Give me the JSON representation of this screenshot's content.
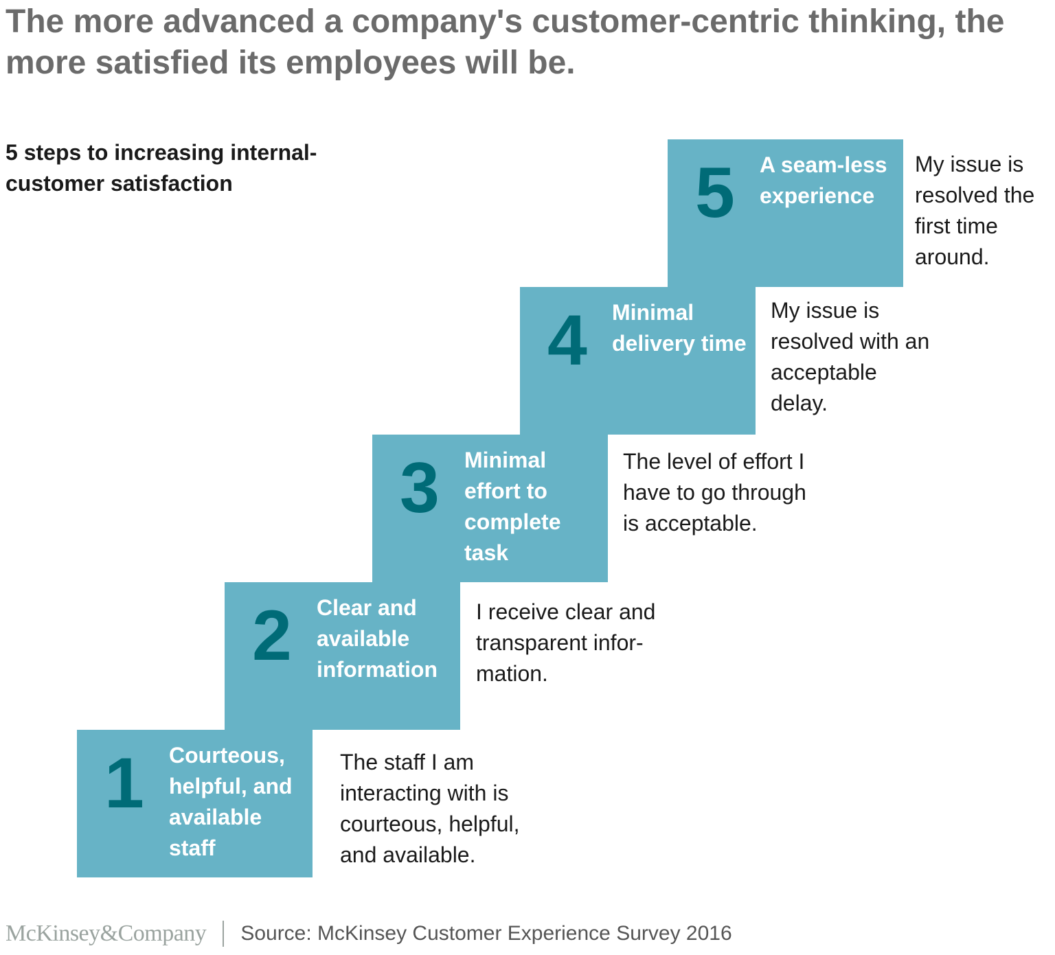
{
  "title": "The more advanced a company's customer-centric thinking, the more satisfied its employees will be.",
  "subtitle": "5 steps to increasing internal-customer satisfaction",
  "steps": [
    {
      "number": "1",
      "label": "Courteous, helpful, and available staff",
      "description": "The staff I am interacting with is courteous, helpful, and available."
    },
    {
      "number": "2",
      "label": "Clear and available information",
      "description": "I receive clear and transparent infor-mation."
    },
    {
      "number": "3",
      "label": "Minimal effort to complete task",
      "description": "The level of effort I have to go through is acceptable."
    },
    {
      "number": "4",
      "label": "Minimal delivery time",
      "description": "My issue is resolved with an acceptable delay."
    },
    {
      "number": "5",
      "label": "A seam-less experience",
      "description": "My issue is resolved the first time around."
    }
  ],
  "footer": {
    "logo": "McKinsey&Company",
    "source": "Source: McKinsey Customer Experience Survey 2016"
  },
  "colors": {
    "step_fill": "#67b3c6",
    "number": "#006b77"
  }
}
